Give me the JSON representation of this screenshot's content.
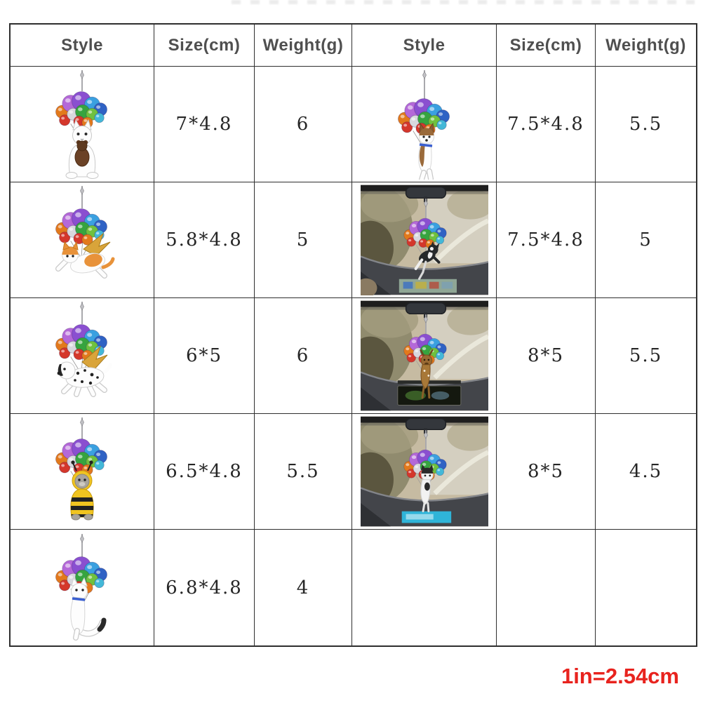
{
  "table": {
    "headers": [
      "Style",
      "Size(cm)",
      "Weight(g)",
      "Style",
      "Size(cm)",
      "Weight(g)"
    ],
    "rows": [
      {
        "l_img": "white-cat-teddy-balloon-pendant",
        "l_size": "7*4.8",
        "l_weight": "6",
        "r_img": "brown-puppy-balloon-pendant",
        "r_size": "7.5*4.8",
        "r_weight": "5.5"
      },
      {
        "l_img": "winged-orange-cat-balloon-pendant",
        "l_size": "5.8*4.8",
        "l_weight": "5",
        "r_img": "car-photo-black-white-dog-balloon-pendant",
        "r_size": "7.5*4.8",
        "r_weight": "5"
      },
      {
        "l_img": "winged-dalmatian-balloon-pendant",
        "l_size": "6*5",
        "l_weight": "6",
        "r_img": "car-photo-deer-balloon-pendant",
        "r_size": "8*5",
        "r_weight": "5.5"
      },
      {
        "l_img": "bee-costume-cat-balloon-pendant",
        "l_size": "6.5*4.8",
        "l_weight": "5.5",
        "r_img": "car-photo-puppy-balloon-pendant",
        "r_size": "8*5",
        "r_weight": "4.5"
      },
      {
        "l_img": "white-cat-balloon-pendant",
        "l_size": "6.8*4.8",
        "l_weight": "4",
        "r_img": "",
        "r_size": "",
        "r_weight": ""
      }
    ]
  },
  "footer": {
    "unit_note": "1in=2.54cm"
  },
  "colors": {
    "note_red": "#e8231e",
    "border": "#2e2e2e",
    "header_text": "#4f4f4f",
    "cell_text": "#262626",
    "balloon_palette": [
      "#e2791c",
      "#b468d8",
      "#8a4fd0",
      "#3aa0e0",
      "#2f62c4",
      "#d4372b",
      "#d8d8de",
      "#36a43f",
      "#6fc13e",
      "#43b8d8"
    ]
  }
}
